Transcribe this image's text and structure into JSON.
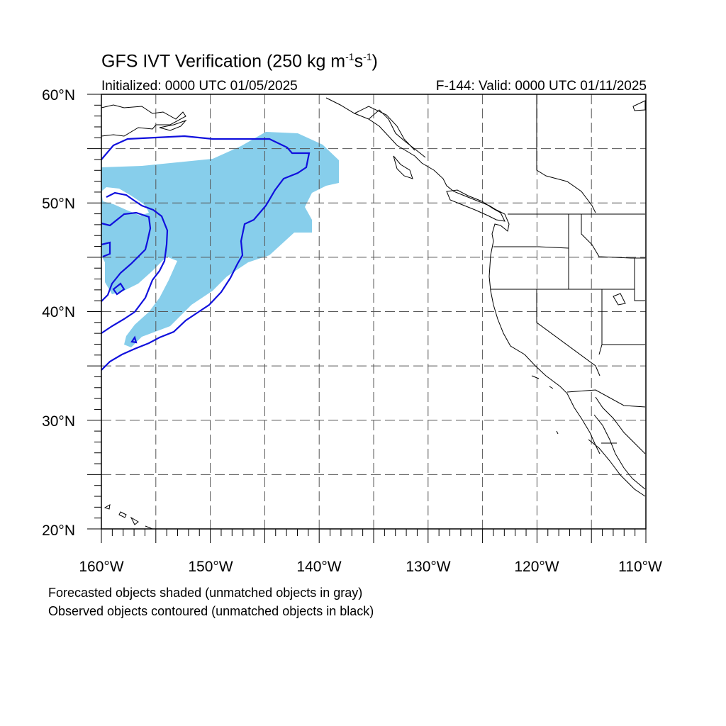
{
  "title": {
    "main": "GFS IVT Verification (250 kg m",
    "sup1": "-1",
    "mid": "s",
    "sup2": "-1",
    "end": ")"
  },
  "initialized": "Initialized: 0000 UTC 01/05/2025",
  "valid": "F-144: Valid: 0000 UTC 01/11/2025",
  "captions": [
    "Forecasted objects shaded (unmatched objects in gray)",
    "Observed objects contoured (unmatched objects in black)"
  ],
  "axes": {
    "lon_min": -160,
    "lon_max": -110,
    "lat_min": 20,
    "lat_max": 60,
    "lat_labels": [
      {
        "value": 60,
        "text": "60°N"
      },
      {
        "value": 50,
        "text": "50°N"
      },
      {
        "value": 40,
        "text": "40°N"
      },
      {
        "value": 30,
        "text": "30°N"
      },
      {
        "value": 20,
        "text": "20°N"
      }
    ],
    "lon_labels": [
      {
        "value": -160,
        "text": "160°W"
      },
      {
        "value": -150,
        "text": "150°W"
      },
      {
        "value": -140,
        "text": "140°W"
      },
      {
        "value": -130,
        "text": "130°W"
      },
      {
        "value": -120,
        "text": "120°W"
      },
      {
        "value": -110,
        "text": "110°W"
      }
    ],
    "grid_lon": [
      -155,
      -150,
      -145,
      -140,
      -135,
      -130,
      -125,
      -120,
      -115
    ],
    "grid_lat": [
      25,
      30,
      35,
      40,
      45,
      50,
      55
    ],
    "grid": true
  },
  "colors": {
    "forecast_fill": "#87ceeb",
    "observed_contour": "#1010dd",
    "coastline": "#000000",
    "grid": "#555555"
  }
}
